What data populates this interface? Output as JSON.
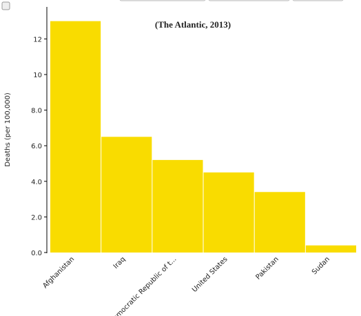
{
  "chart_data": {
    "type": "bar",
    "title": "(The Atlantic, 2013)",
    "y_label": "Deaths (per 100,000)",
    "categories": [
      "Afghanistan",
      "Iraq",
      "Democratic Republic of t...",
      "United States",
      "Pakistan",
      "Sudan"
    ],
    "values": [
      13,
      6.5,
      5.2,
      4.5,
      3.4,
      0.4
    ],
    "color": "#f9dc00",
    "ylim": [
      0,
      13.8
    ],
    "yticks": [
      {
        "value": 0,
        "label": "0.0"
      },
      {
        "value": 2,
        "label": "2.0"
      },
      {
        "value": 4,
        "label": "4.0"
      },
      {
        "value": 6,
        "label": "6.0"
      },
      {
        "value": 8,
        "label": "8.0"
      },
      10,
      12
    ],
    "grid": false
  }
}
